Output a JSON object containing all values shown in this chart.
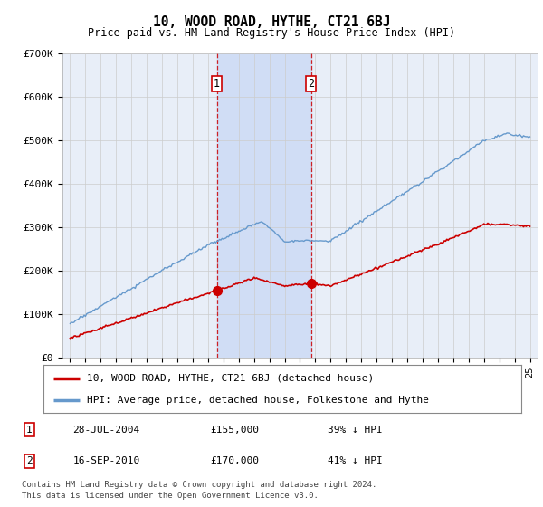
{
  "title": "10, WOOD ROAD, HYTHE, CT21 6BJ",
  "subtitle": "Price paid vs. HM Land Registry's House Price Index (HPI)",
  "footer1": "Contains HM Land Registry data © Crown copyright and database right 2024.",
  "footer2": "This data is licensed under the Open Government Licence v3.0.",
  "legend_label_red": "10, WOOD ROAD, HYTHE, CT21 6BJ (detached house)",
  "legend_label_blue": "HPI: Average price, detached house, Folkestone and Hythe",
  "transaction1_date": "28-JUL-2004",
  "transaction1_price": "£155,000",
  "transaction1_hpi": "39% ↓ HPI",
  "transaction1_year": 2004.57,
  "transaction1_value": 155000,
  "transaction2_date": "16-SEP-2010",
  "transaction2_price": "£170,000",
  "transaction2_hpi": "41% ↓ HPI",
  "transaction2_year": 2010.71,
  "transaction2_value": 170000,
  "vline1_x": 2004.57,
  "vline2_x": 2010.71,
  "ylim": [
    0,
    700000
  ],
  "yticks": [
    0,
    100000,
    200000,
    300000,
    400000,
    500000,
    600000,
    700000
  ],
  "ytick_labels": [
    "£0",
    "£100K",
    "£200K",
    "£300K",
    "£400K",
    "£500K",
    "£600K",
    "£700K"
  ],
  "xlim": [
    1994.5,
    2025.5
  ],
  "bg_color": "#e8eef8",
  "shade_color": "#d0ddf5",
  "red_color": "#cc0000",
  "blue_color": "#6699cc",
  "vline_color": "#cc0000",
  "grid_color": "#cccccc",
  "title_fontsize": 11,
  "subtitle_fontsize": 9
}
